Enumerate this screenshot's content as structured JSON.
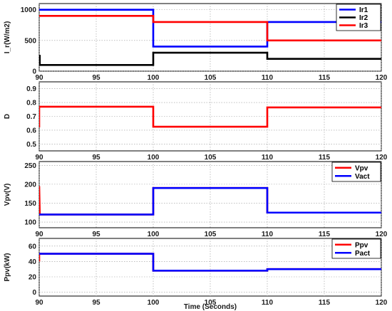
{
  "chart_data": [
    {
      "type": "line",
      "ylabel": "I_r(W/m2)",
      "xlim": [
        90,
        120
      ],
      "ylim": [
        0,
        1100
      ],
      "xticks": [
        90,
        95,
        100,
        105,
        110,
        115,
        120
      ],
      "yticks": [
        0,
        500,
        1000
      ],
      "grid": true,
      "legend_position": "top-right",
      "series": [
        {
          "name": "Ir1",
          "color": "#0000ff",
          "x": [
            90,
            100,
            100,
            110,
            110,
            120
          ],
          "y": [
            1000,
            1000,
            400,
            400,
            800,
            800
          ]
        },
        {
          "name": "Ir2",
          "color": "#000000",
          "x": [
            90,
            90.05,
            90.05,
            100,
            100,
            110,
            110,
            120
          ],
          "y": [
            250,
            250,
            100,
            100,
            300,
            300,
            200,
            200
          ]
        },
        {
          "name": "Ir3",
          "color": "#ff0000",
          "x": [
            90,
            100,
            100,
            110,
            110,
            120
          ],
          "y": [
            900,
            900,
            800,
            800,
            500,
            500
          ]
        }
      ]
    },
    {
      "type": "line",
      "ylabel": "D",
      "xlim": [
        90,
        120
      ],
      "ylim": [
        0.45,
        0.95
      ],
      "xticks": [
        90,
        95,
        100,
        105,
        110,
        115,
        120
      ],
      "yticks": [
        0.5,
        0.6,
        0.7,
        0.8,
        0.9
      ],
      "grid": true,
      "series": [
        {
          "color": "#ff0000",
          "x": [
            90,
            90,
            90.05,
            100,
            100,
            110,
            110,
            120
          ],
          "y": [
            0.62,
            0.77,
            0.77,
            0.77,
            0.625,
            0.625,
            0.765,
            0.765
          ]
        }
      ]
    },
    {
      "type": "line",
      "ylabel": "Vpv(V)",
      "xlim": [
        90,
        120
      ],
      "ylim": [
        85,
        260
      ],
      "xticks": [
        90,
        95,
        100,
        105,
        110,
        115,
        120
      ],
      "yticks": [
        100,
        150,
        200,
        250
      ],
      "grid": true,
      "legend_position": "top-right",
      "series": [
        {
          "name": "Vpv",
          "color": "#ff0000",
          "x": [
            90,
            90,
            90.05,
            100,
            100,
            110,
            110,
            120
          ],
          "y": [
            120,
            195,
            120,
            120,
            190,
            190,
            125,
            125
          ]
        },
        {
          "name": "Vact",
          "color": "#0000ff",
          "x": [
            90,
            100,
            100,
            110,
            110,
            120
          ],
          "y": [
            120,
            120,
            190,
            190,
            125,
            125
          ]
        }
      ]
    },
    {
      "type": "line",
      "ylabel": "Ppv(kW)",
      "xlabel": "Time (Seconds)",
      "xlim": [
        90,
        120
      ],
      "ylim": [
        -5,
        70
      ],
      "xticks": [
        90,
        95,
        100,
        105,
        110,
        115,
        120
      ],
      "yticks": [
        0,
        20,
        40,
        60
      ],
      "grid": true,
      "legend_position": "top-right",
      "series": [
        {
          "name": "Ppv",
          "color": "#ff0000",
          "x": [
            90,
            90,
            90.05,
            100,
            100,
            110,
            110,
            120
          ],
          "y": [
            40,
            50,
            50,
            50,
            28,
            28,
            30,
            30
          ]
        },
        {
          "name": "Pact",
          "color": "#0000ff",
          "x": [
            90,
            100,
            100,
            110,
            110,
            120
          ],
          "y": [
            50,
            50,
            28,
            28,
            30,
            30
          ]
        }
      ]
    }
  ]
}
